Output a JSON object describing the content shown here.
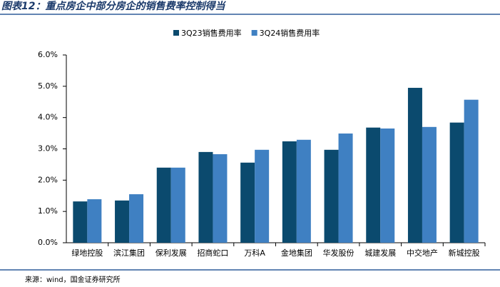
{
  "chart_data": {
    "type": "bar",
    "title": "图表12：重点房企中部分房企的销售费率控制得当",
    "source": "来源：wind，国金证券研究所",
    "categories": [
      "绿地控股",
      "滨江集团",
      "保利发展",
      "招商蛇口",
      "万科A",
      "金地集团",
      "华发股份",
      "城建发展",
      "中交地产",
      "新城控股"
    ],
    "series": [
      {
        "name": "3Q23销售费用率",
        "color": "#0b4a6e",
        "values": [
          1.32,
          1.35,
          2.4,
          2.9,
          2.56,
          3.24,
          2.97,
          3.68,
          4.95,
          3.84
        ]
      },
      {
        "name": "3Q24销售费用率",
        "color": "#3f80c2",
        "values": [
          1.39,
          1.55,
          2.4,
          2.83,
          2.97,
          3.29,
          3.49,
          3.65,
          3.7,
          4.57
        ]
      }
    ],
    "ylim": [
      0,
      6
    ],
    "yticks": [
      {
        "value": 0,
        "label": "0.0%"
      },
      {
        "value": 1,
        "label": "1.0%"
      },
      {
        "value": 2,
        "label": "2.0%"
      },
      {
        "value": 3,
        "label": "3.0%"
      },
      {
        "value": 4,
        "label": "4.0%"
      },
      {
        "value": 5,
        "label": "5.0%"
      },
      {
        "value": 6,
        "label": "6.0%"
      }
    ],
    "grid": false
  }
}
